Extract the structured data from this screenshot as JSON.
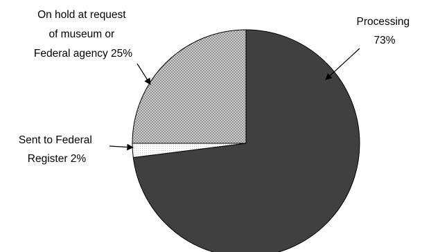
{
  "chart_data": {
    "type": "pie",
    "title": "",
    "slices": [
      {
        "label": "Processing",
        "value": 73,
        "value_label": "73%",
        "fill": "dark-gray",
        "color": "#404040"
      },
      {
        "label": "Sent to Federal Register",
        "value": 2,
        "value_label": "2%",
        "fill": "white-fine-dots",
        "color": "#f4f4f4"
      },
      {
        "label": "On hold at request of museum or Federal agency",
        "value": 25,
        "value_label": "25%",
        "fill": "gray-crosshatch",
        "color": "#bdbdbd"
      }
    ],
    "labels": [
      {
        "lines": [
          "Processing",
          "73%"
        ]
      },
      {
        "lines": [
          "Sent to Federal",
          "Register 2%"
        ]
      },
      {
        "lines": [
          "On hold at request",
          "of museum or",
          "Federal agency 25%"
        ]
      }
    ],
    "legend": "none",
    "label_style": "callout-arrows"
  }
}
